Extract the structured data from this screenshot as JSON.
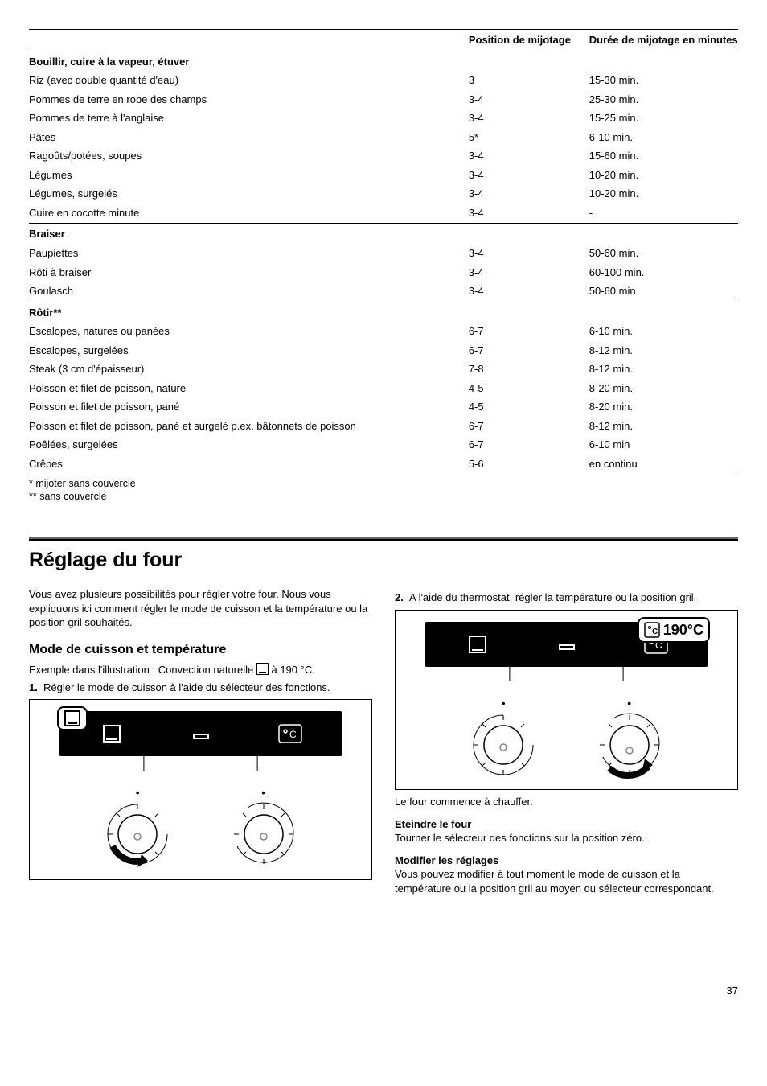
{
  "table": {
    "header": {
      "c1": "",
      "c2": "Position de mijo­tage",
      "c3": "Durée de mijotage en minutes"
    },
    "sections": [
      {
        "title": "Bouillir, cuire à la vapeur, étuver",
        "rows": [
          {
            "name": "Riz (avec double quantité d'eau)",
            "pos": "3",
            "dur": "15-30 min."
          },
          {
            "name": "Pommes de terre en robe des champs",
            "pos": "3-4",
            "dur": "25-30 min."
          },
          {
            "name": "Pommes de terre à l'anglaise",
            "pos": "3-4",
            "dur": "15-25 min."
          },
          {
            "name": "Pâtes",
            "pos": "5*",
            "dur": "6-10 min."
          },
          {
            "name": "Ragoûts/potées, soupes",
            "pos": "3-4",
            "dur": "15-60 min."
          },
          {
            "name": "Légumes",
            "pos": "3-4",
            "dur": "10-20 min."
          },
          {
            "name": "Légumes, surgelés",
            "pos": "3-4",
            "dur": "10-20 min."
          },
          {
            "name": "Cuire en cocotte minute",
            "pos": "3-4",
            "dur": "-"
          }
        ]
      },
      {
        "title": "Braiser",
        "rows": [
          {
            "name": "Paupiettes",
            "pos": "3-4",
            "dur": "50-60 min."
          },
          {
            "name": "Rôti à braiser",
            "pos": "3-4",
            "dur": "60-100 min."
          },
          {
            "name": "Goulasch",
            "pos": "3-4",
            "dur": "50-60 min"
          }
        ]
      },
      {
        "title": "Rôtir**",
        "rows": [
          {
            "name": "Escalopes, natures ou panées",
            "pos": "6-7",
            "dur": "6-10 min."
          },
          {
            "name": "Escalopes, surgelées",
            "pos": "6-7",
            "dur": "8-12 min."
          },
          {
            "name": "Steak (3 cm d'épaisseur)",
            "pos": "7-8",
            "dur": "8-12 min."
          },
          {
            "name": "Poisson et filet de poisson, nature",
            "pos": "4-5",
            "dur": "8-20 min."
          },
          {
            "name": "Poisson et filet de poisson, pané",
            "pos": "4-5",
            "dur": "8-20 min."
          },
          {
            "name": "Poisson et filet de poisson, pané et surgelé p.ex. bâtonnets de poisson",
            "pos": "6-7",
            "dur": "8-12 min."
          },
          {
            "name": "Poêlées, surgelées",
            "pos": "6-7",
            "dur": "6-10 min"
          },
          {
            "name": "Crêpes",
            "pos": "5-6",
            "dur": "en continu"
          }
        ]
      }
    ],
    "footnote1": "* mijoter sans couvercle",
    "footnote2": "** sans couvercle"
  },
  "heading": "Réglage du four",
  "intro": "Vous avez plusieurs possibilités pour régler votre four. Nous vous expliquons ici comment régler le mode de cuisson et la température ou la position gril souhaités.",
  "sub1": "Mode de cuisson et température",
  "example": "Exemple dans l'illustration : Convection naturelle ",
  "example_after": " à 190 °C.",
  "step1": {
    "num": "1.",
    "text": "Régler le mode de cuisson à l'aide du sélecteur des fonctions."
  },
  "step2": {
    "num": "2.",
    "text": "A l'aide du thermostat, régler la température ou la position gril."
  },
  "fig2_temp": "190°C",
  "heatline": "Le four commence à chauffer.",
  "off_title": "Eteindre le four",
  "off_text": "Tourner le sélecteur des fonctions sur la position zéro.",
  "mod_title": "Modifier les réglages",
  "mod_text": "Vous pouvez modifier à tout moment le mode de cuisson et la température ou la position gril au moyen du sélecteur correspondant.",
  "page_number": "37",
  "colors": {
    "panel_bg": "#000000",
    "text": "#000000",
    "page_bg": "#ffffff"
  }
}
